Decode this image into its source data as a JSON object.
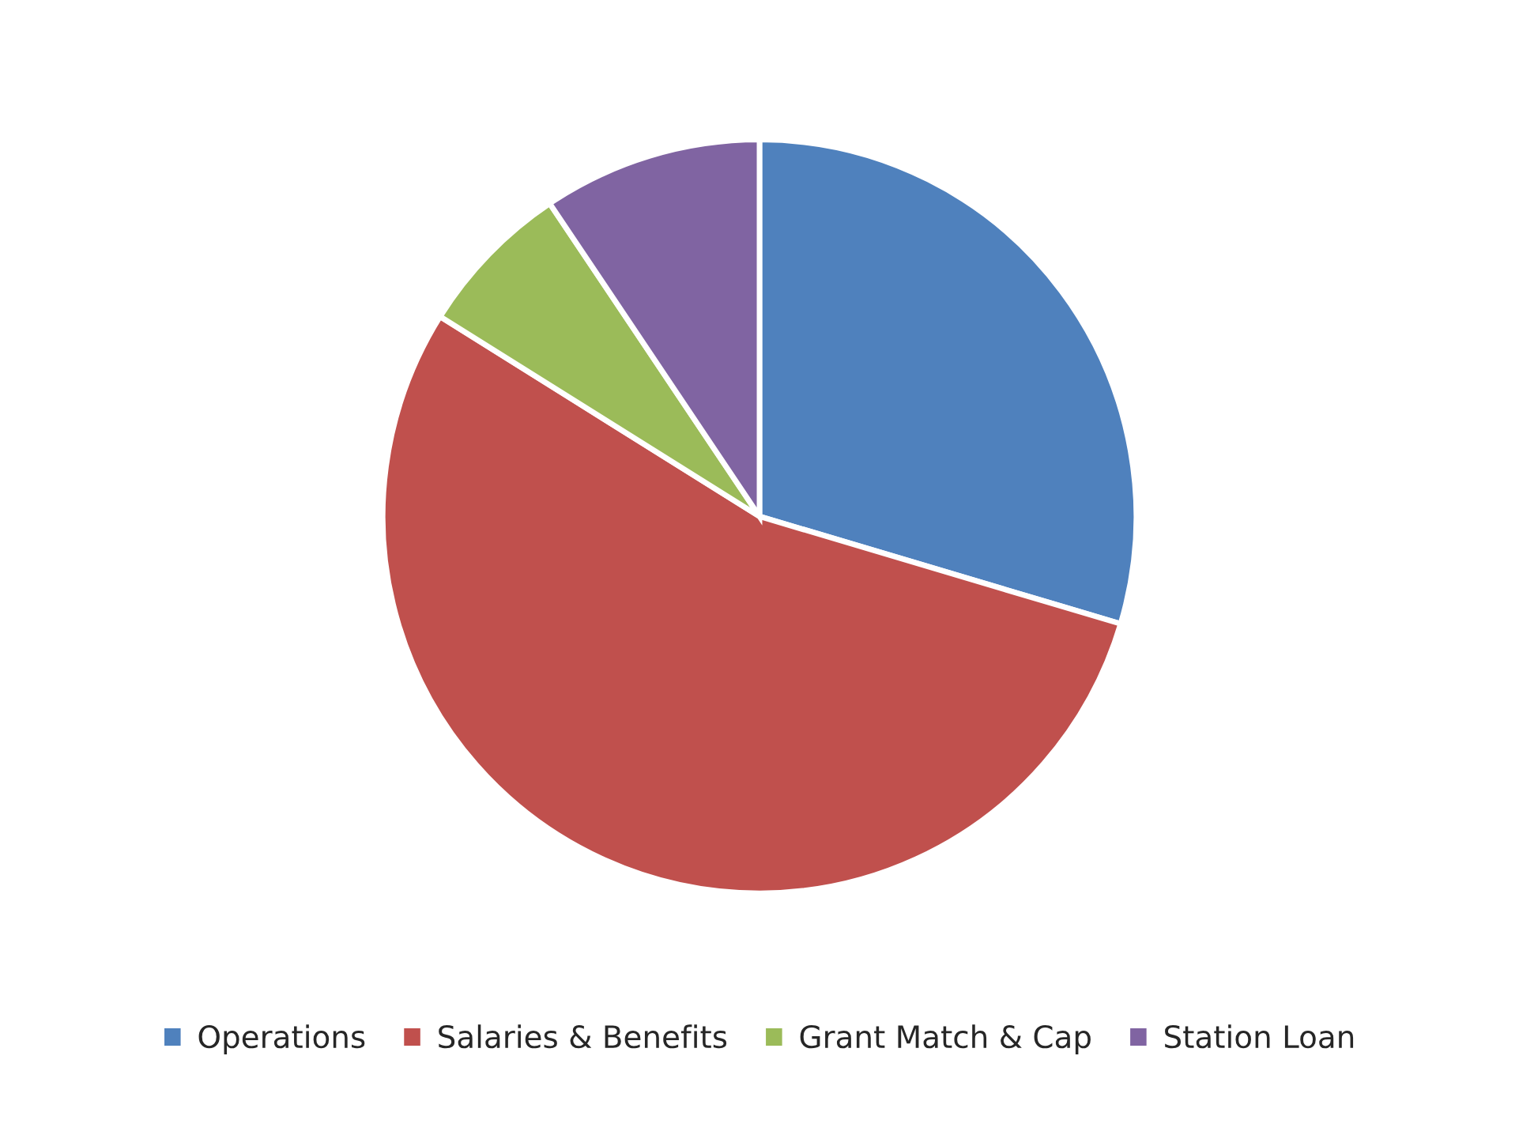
{
  "chart_data": {
    "type": "pie",
    "categories": [
      "Operations",
      "Salaries & Benefits",
      "Grant Match & Cap",
      "Station Loan"
    ],
    "values": [
      29.6,
      54.3,
      6.7,
      9.4
    ],
    "colors": [
      "#4f81bd",
      "#c0504d",
      "#9bbb59",
      "#8064a2"
    ],
    "legend": "bottom"
  }
}
